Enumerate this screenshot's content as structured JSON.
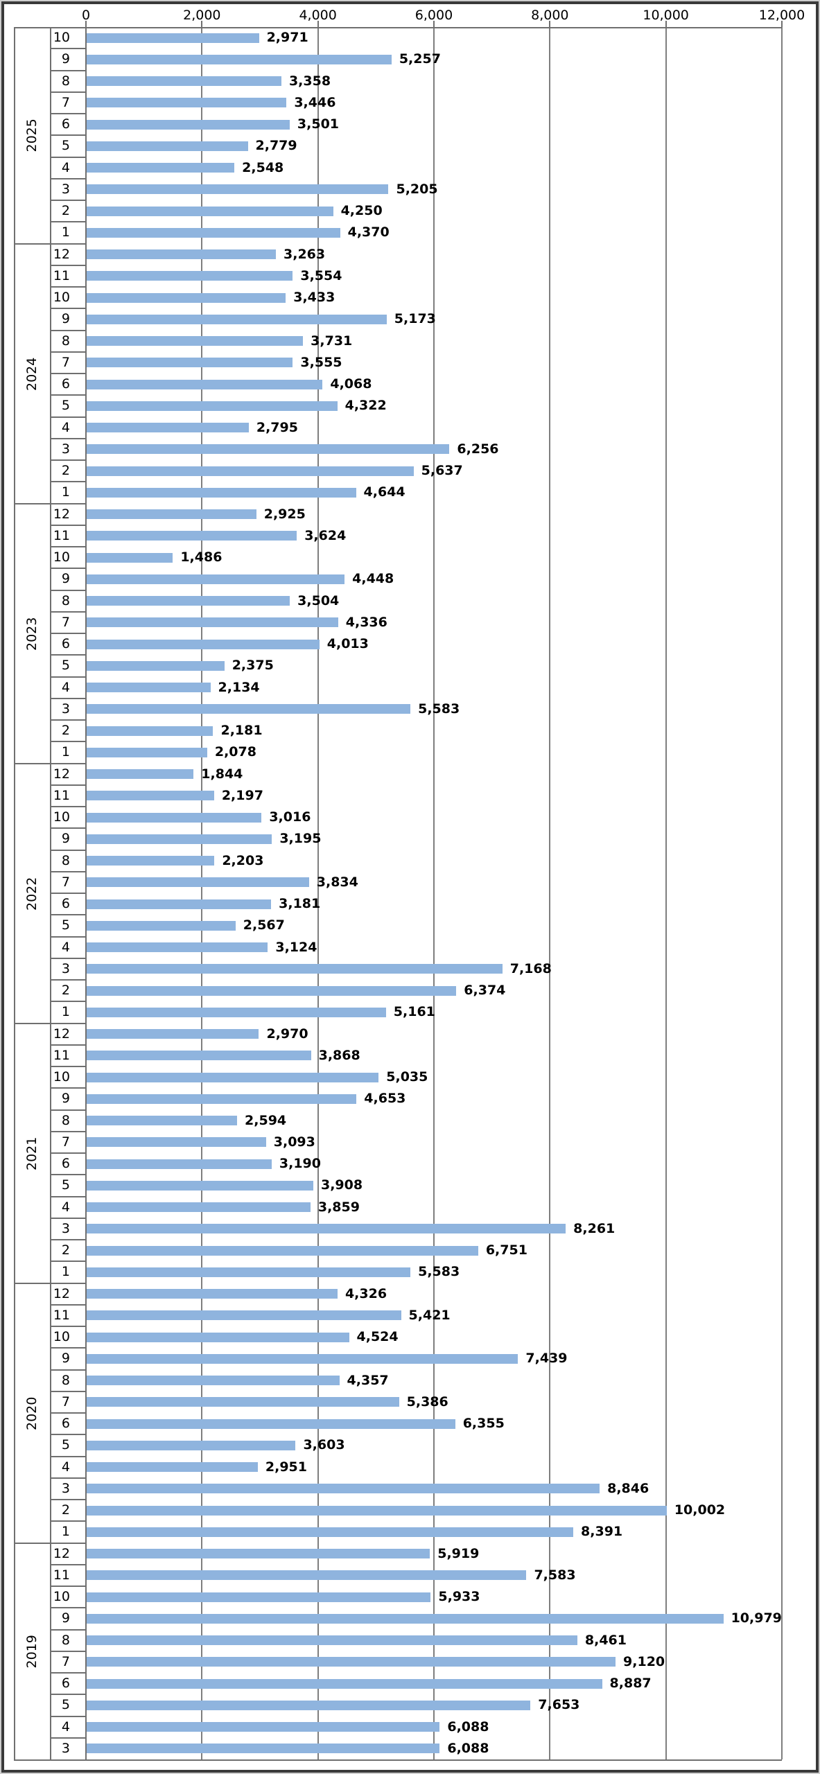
{
  "chart_data": {
    "type": "bar",
    "orientation": "horizontal",
    "title": "",
    "legend": "none",
    "grid": "vertical-major-gridlines",
    "data_label_position": "outside-end",
    "colors": {
      "bar": "#8FB4DE",
      "gridline": "#7E7E7E",
      "axis": "#6F6F6F",
      "text": "#000000"
    },
    "value_axis": {
      "position": "top",
      "min": 0,
      "max": 12000,
      "tick_interval": 2000,
      "tick_labels": [
        "0",
        "2,000",
        "4,000",
        "6,000",
        "8,000",
        "10,000",
        "12,000"
      ]
    },
    "category_axis": {
      "levels": [
        "month",
        "year"
      ],
      "order": "newest-first"
    },
    "groups": [
      {
        "year": "2025",
        "rows": [
          {
            "month": "10",
            "value": 2971,
            "label": "2,971"
          },
          {
            "month": "9",
            "value": 5257,
            "label": "5,257"
          },
          {
            "month": "8",
            "value": 3358,
            "label": "3,358"
          },
          {
            "month": "7",
            "value": 3446,
            "label": "3,446"
          },
          {
            "month": "6",
            "value": 3501,
            "label": "3,501"
          },
          {
            "month": "5",
            "value": 2779,
            "label": "2,779"
          },
          {
            "month": "4",
            "value": 2548,
            "label": "2,548"
          },
          {
            "month": "3",
            "value": 5205,
            "label": "5,205"
          },
          {
            "month": "2",
            "value": 4250,
            "label": "4,250"
          },
          {
            "month": "1",
            "value": 4370,
            "label": "4,370"
          }
        ]
      },
      {
        "year": "2024",
        "rows": [
          {
            "month": "12",
            "value": 3263,
            "label": "3,263"
          },
          {
            "month": "11",
            "value": 3554,
            "label": "3,554"
          },
          {
            "month": "10",
            "value": 3433,
            "label": "3,433"
          },
          {
            "month": "9",
            "value": 5173,
            "label": "5,173"
          },
          {
            "month": "8",
            "value": 3731,
            "label": "3,731"
          },
          {
            "month": "7",
            "value": 3555,
            "label": "3,555"
          },
          {
            "month": "6",
            "value": 4068,
            "label": "4,068"
          },
          {
            "month": "5",
            "value": 4322,
            "label": "4,322"
          },
          {
            "month": "4",
            "value": 2795,
            "label": "2,795"
          },
          {
            "month": "3",
            "value": 6256,
            "label": "6,256"
          },
          {
            "month": "2",
            "value": 5637,
            "label": "5,637"
          },
          {
            "month": "1",
            "value": 4644,
            "label": "4,644"
          }
        ]
      },
      {
        "year": "2023",
        "rows": [
          {
            "month": "12",
            "value": 2925,
            "label": "2,925"
          },
          {
            "month": "11",
            "value": 3624,
            "label": "3,624"
          },
          {
            "month": "10",
            "value": 1486,
            "label": "1,486"
          },
          {
            "month": "9",
            "value": 4448,
            "label": "4,448"
          },
          {
            "month": "8",
            "value": 3504,
            "label": "3,504"
          },
          {
            "month": "7",
            "value": 4336,
            "label": "4,336"
          },
          {
            "month": "6",
            "value": 4013,
            "label": "4,013"
          },
          {
            "month": "5",
            "value": 2375,
            "label": "2,375"
          },
          {
            "month": "4",
            "value": 2134,
            "label": "2,134"
          },
          {
            "month": "3",
            "value": 5583,
            "label": "5,583"
          },
          {
            "month": "2",
            "value": 2181,
            "label": "2,181"
          },
          {
            "month": "1",
            "value": 2078,
            "label": "2,078"
          }
        ]
      },
      {
        "year": "2022",
        "rows": [
          {
            "month": "12",
            "value": 1844,
            "label": "1,844"
          },
          {
            "month": "11",
            "value": 2197,
            "label": "2,197"
          },
          {
            "month": "10",
            "value": 3016,
            "label": "3,016"
          },
          {
            "month": "9",
            "value": 3195,
            "label": "3,195"
          },
          {
            "month": "8",
            "value": 2203,
            "label": "2,203"
          },
          {
            "month": "7",
            "value": 3834,
            "label": "3,834"
          },
          {
            "month": "6",
            "value": 3181,
            "label": "3,181"
          },
          {
            "month": "5",
            "value": 2567,
            "label": "2,567"
          },
          {
            "month": "4",
            "value": 3124,
            "label": "3,124"
          },
          {
            "month": "3",
            "value": 7168,
            "label": "7,168"
          },
          {
            "month": "2",
            "value": 6374,
            "label": "6,374"
          },
          {
            "month": "1",
            "value": 5161,
            "label": "5,161"
          }
        ]
      },
      {
        "year": "2021",
        "rows": [
          {
            "month": "12",
            "value": 2970,
            "label": "2,970"
          },
          {
            "month": "11",
            "value": 3868,
            "label": "3,868"
          },
          {
            "month": "10",
            "value": 5035,
            "label": "5,035"
          },
          {
            "month": "9",
            "value": 4653,
            "label": "4,653"
          },
          {
            "month": "8",
            "value": 2594,
            "label": "2,594"
          },
          {
            "month": "7",
            "value": 3093,
            "label": "3,093"
          },
          {
            "month": "6",
            "value": 3190,
            "label": "3,190"
          },
          {
            "month": "5",
            "value": 3908,
            "label": "3,908"
          },
          {
            "month": "4",
            "value": 3859,
            "label": "3,859"
          },
          {
            "month": "3",
            "value": 8261,
            "label": "8,261"
          },
          {
            "month": "2",
            "value": 6751,
            "label": "6,751"
          },
          {
            "month": "1",
            "value": 5583,
            "label": "5,583"
          }
        ]
      },
      {
        "year": "2020",
        "rows": [
          {
            "month": "12",
            "value": 4326,
            "label": "4,326"
          },
          {
            "month": "11",
            "value": 5421,
            "label": "5,421"
          },
          {
            "month": "10",
            "value": 4524,
            "label": "4,524"
          },
          {
            "month": "9",
            "value": 7439,
            "label": "7,439"
          },
          {
            "month": "8",
            "value": 4357,
            "label": "4,357"
          },
          {
            "month": "7",
            "value": 5386,
            "label": "5,386"
          },
          {
            "month": "6",
            "value": 6355,
            "label": "6,355"
          },
          {
            "month": "5",
            "value": 3603,
            "label": "3,603"
          },
          {
            "month": "4",
            "value": 2951,
            "label": "2,951"
          },
          {
            "month": "3",
            "value": 8846,
            "label": "8,846"
          },
          {
            "month": "2",
            "value": 10002,
            "label": "10,002"
          },
          {
            "month": "1",
            "value": 8391,
            "label": "8,391"
          }
        ]
      },
      {
        "year": "2019",
        "rows": [
          {
            "month": "12",
            "value": 5919,
            "label": "5,919"
          },
          {
            "month": "11",
            "value": 7583,
            "label": "7,583"
          },
          {
            "month": "10",
            "value": 5933,
            "label": "5,933"
          },
          {
            "month": "9",
            "value": 10979,
            "label": "10,979"
          },
          {
            "month": "8",
            "value": 8461,
            "label": "8,461"
          },
          {
            "month": "7",
            "value": 9120,
            "label": "9,120"
          },
          {
            "month": "6",
            "value": 8887,
            "label": "8,887"
          },
          {
            "month": "5",
            "value": 7653,
            "label": "7,653"
          },
          {
            "month": "4",
            "value": 6088,
            "label": "6,088"
          },
          {
            "month": "3",
            "value": 6088,
            "label": "6,088"
          }
        ]
      }
    ]
  }
}
